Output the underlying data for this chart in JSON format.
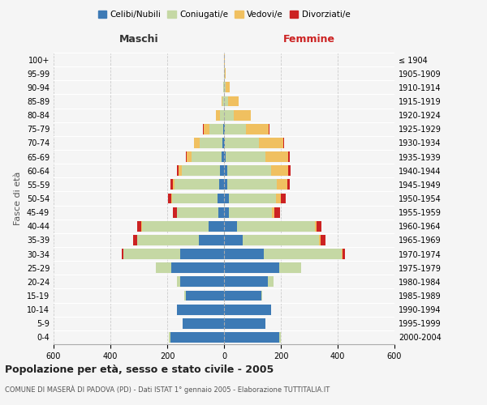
{
  "age_groups": [
    "0-4",
    "5-9",
    "10-14",
    "15-19",
    "20-24",
    "25-29",
    "30-34",
    "35-39",
    "40-44",
    "45-49",
    "50-54",
    "55-59",
    "60-64",
    "65-69",
    "70-74",
    "75-79",
    "80-84",
    "85-89",
    "90-94",
    "95-99",
    "100+"
  ],
  "birth_years": [
    "2000-2004",
    "1995-1999",
    "1990-1994",
    "1985-1989",
    "1980-1984",
    "1975-1979",
    "1970-1974",
    "1965-1969",
    "1960-1964",
    "1955-1959",
    "1950-1954",
    "1945-1949",
    "1940-1944",
    "1935-1939",
    "1930-1934",
    "1925-1929",
    "1920-1924",
    "1915-1919",
    "1910-1914",
    "1905-1909",
    "≤ 1904"
  ],
  "colors": {
    "celibe": "#3d7ab5",
    "coniugato": "#c5d8a4",
    "vedovo": "#f0c060",
    "divorziato": "#cc2222"
  },
  "maschi": {
    "celibe": [
      190,
      145,
      165,
      135,
      155,
      185,
      155,
      90,
      55,
      20,
      22,
      18,
      14,
      8,
      5,
      2,
      0,
      0,
      0,
      0,
      0
    ],
    "coniugato": [
      5,
      0,
      2,
      4,
      12,
      55,
      200,
      215,
      235,
      145,
      160,
      155,
      135,
      105,
      80,
      50,
      15,
      5,
      2,
      0,
      0
    ],
    "vedovo": [
      0,
      0,
      0,
      0,
      0,
      0,
      0,
      2,
      2,
      2,
      5,
      8,
      12,
      18,
      20,
      20,
      15,
      5,
      0,
      0,
      0
    ],
    "divorziato": [
      0,
      0,
      0,
      0,
      0,
      0,
      5,
      12,
      15,
      12,
      10,
      8,
      5,
      2,
      2,
      2,
      0,
      0,
      0,
      0,
      0
    ]
  },
  "femmine": {
    "nubile": [
      195,
      145,
      165,
      130,
      155,
      195,
      140,
      65,
      45,
      18,
      18,
      12,
      10,
      5,
      3,
      2,
      0,
      0,
      0,
      0,
      0
    ],
    "coniugata": [
      5,
      0,
      2,
      5,
      18,
      75,
      275,
      270,
      275,
      150,
      165,
      175,
      155,
      140,
      120,
      75,
      35,
      15,
      5,
      2,
      0
    ],
    "vedova": [
      0,
      0,
      0,
      0,
      0,
      2,
      2,
      5,
      5,
      10,
      18,
      35,
      60,
      80,
      85,
      80,
      60,
      35,
      15,
      3,
      2
    ],
    "divorziata": [
      0,
      0,
      0,
      0,
      0,
      0,
      8,
      18,
      18,
      18,
      15,
      10,
      8,
      5,
      2,
      2,
      0,
      0,
      0,
      0,
      0
    ]
  },
  "xlim": 600,
  "title": "Popolazione per età, sesso e stato civile - 2005",
  "subtitle": "COMUNE DI MASERÀ DI PADOVA (PD) - Dati ISTAT 1° gennaio 2005 - Elaborazione TUTTITALIA.IT",
  "ylabel_left": "Fasce di età",
  "xlabel_left": "Maschi",
  "xlabel_right": "Femmine",
  "bg_color": "#f5f5f5",
  "grid_color": "#cccccc"
}
